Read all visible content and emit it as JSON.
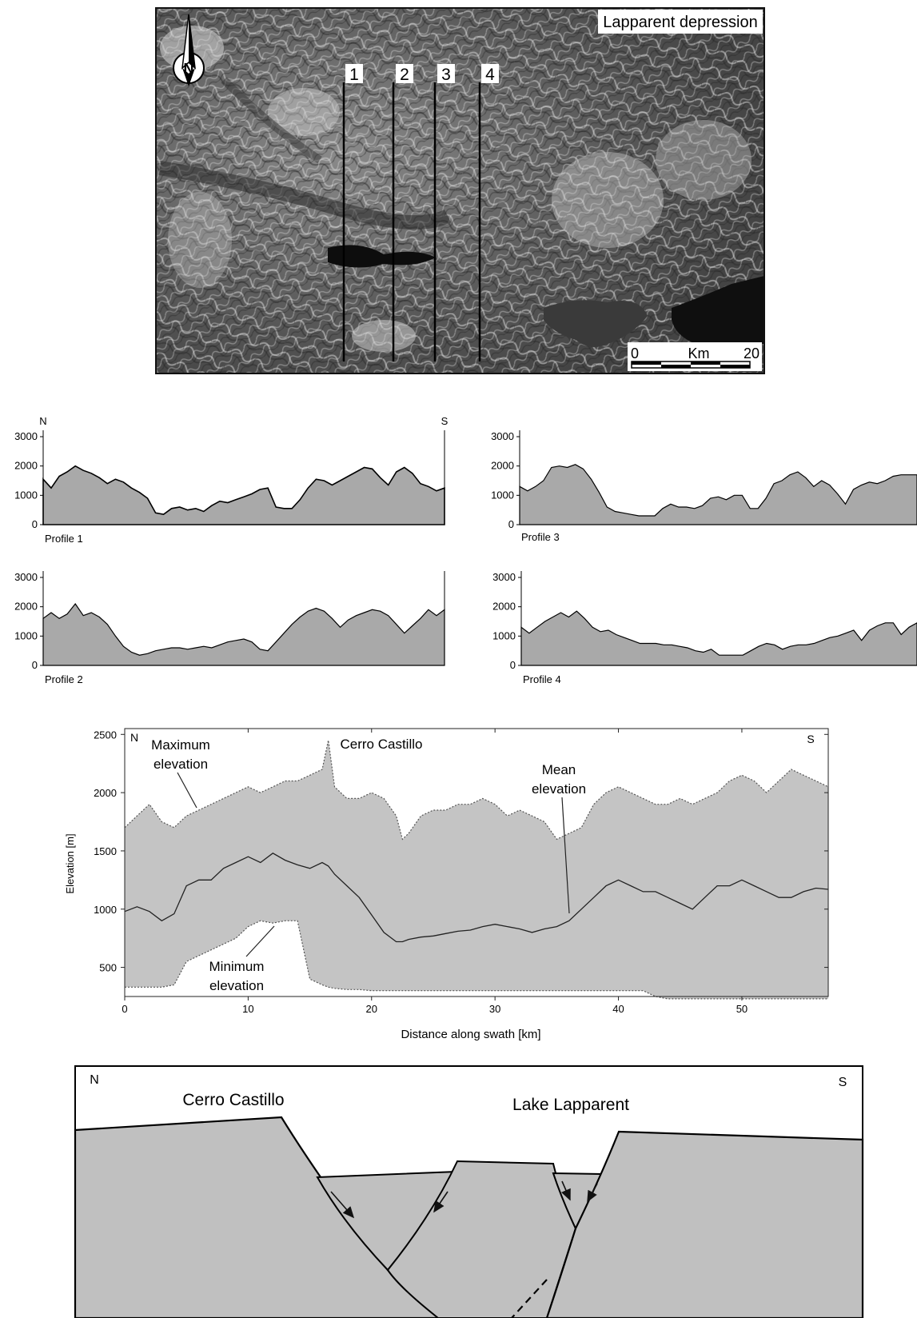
{
  "map": {
    "title": "Lapparent depression",
    "profile_lines": [
      "1",
      "2",
      "3",
      "4"
    ],
    "scale": {
      "start": "0",
      "unit": "Km",
      "end": "20"
    },
    "north_label": "N",
    "icons": [
      "north-arrow-icon",
      "scale-bar"
    ]
  },
  "profiles": {
    "north_label": "N",
    "south_label": "S",
    "y_ticks": [
      "0",
      "1000",
      "2000",
      "3000"
    ],
    "panels": [
      {
        "label": "Profile 1"
      },
      {
        "label": "Profile 2"
      },
      {
        "label": "Profile 3"
      },
      {
        "label": "Profile 4"
      }
    ]
  },
  "swath": {
    "north_label": "N",
    "south_label": "S",
    "ylabel": "Elevation [m]",
    "xlabel": "Distance along swath [km]",
    "y_ticks": [
      "500",
      "1000",
      "1500",
      "2000",
      "2500"
    ],
    "x_ticks": [
      "0",
      "10",
      "20",
      "30",
      "40",
      "50"
    ],
    "annotations": {
      "max_line1": "Maximum",
      "max_line2": "elevation",
      "peak": "Cerro Castillo",
      "mean_line1": "Mean",
      "mean_line2": "elevation",
      "min_line1": "Minimum",
      "min_line2": "elevation"
    }
  },
  "section": {
    "north_label": "N",
    "south_label": "S",
    "left_label": "Cerro Castillo",
    "right_label": "Lake Lapparent"
  },
  "chart_data": [
    {
      "type": "area",
      "panel": "Profile 1",
      "ylim": [
        0,
        3000
      ],
      "y_ticks": [
        0,
        1000,
        2000,
        3000
      ],
      "x": [
        0,
        2,
        4,
        6,
        8,
        10,
        12,
        14,
        16,
        18,
        20,
        22,
        24,
        26,
        28,
        30,
        32,
        34,
        36,
        38,
        40,
        42,
        44,
        46,
        48,
        50,
        52,
        54,
        56,
        58,
        60,
        62,
        64,
        66,
        68,
        70,
        72,
        74,
        76,
        78,
        80,
        82,
        84,
        86,
        88,
        90,
        92,
        94,
        96,
        98,
        100
      ],
      "values": [
        1550,
        1250,
        1650,
        1800,
        2000,
        1850,
        1750,
        1600,
        1400,
        1550,
        1450,
        1250,
        1100,
        900,
        400,
        350,
        550,
        600,
        500,
        550,
        450,
        650,
        800,
        750,
        850,
        950,
        1050,
        1200,
        1250,
        600,
        550,
        550,
        850,
        1250,
        1550,
        1500,
        1350,
        1500,
        1650,
        1800,
        1950,
        1900,
        1600,
        1350,
        1800,
        1950,
        1750,
        1400,
        1300,
        1150,
        1250
      ]
    },
    {
      "type": "area",
      "panel": "Profile 2",
      "ylim": [
        0,
        3000
      ],
      "y_ticks": [
        0,
        1000,
        2000,
        3000
      ],
      "x": [
        0,
        2,
        4,
        6,
        8,
        10,
        12,
        14,
        16,
        18,
        20,
        22,
        24,
        26,
        28,
        30,
        32,
        34,
        36,
        38,
        40,
        42,
        44,
        46,
        48,
        50,
        52,
        54,
        56,
        58,
        60,
        62,
        64,
        66,
        68,
        70,
        72,
        74,
        76,
        78,
        80,
        82,
        84,
        86,
        88,
        90,
        92,
        94,
        96,
        98,
        100
      ],
      "values": [
        1600,
        1800,
        1600,
        1750,
        2100,
        1700,
        1800,
        1650,
        1400,
        1000,
        650,
        450,
        350,
        400,
        500,
        550,
        600,
        600,
        550,
        600,
        650,
        600,
        700,
        800,
        850,
        900,
        800,
        550,
        500,
        800,
        1100,
        1400,
        1650,
        1850,
        1950,
        1850,
        1600,
        1300,
        1550,
        1700,
        1800,
        1900,
        1850,
        1700,
        1400,
        1100,
        1350,
        1600,
        1900,
        1700,
        1900
      ]
    },
    {
      "type": "area",
      "panel": "Profile 3",
      "ylim": [
        0,
        3000
      ],
      "y_ticks": [
        0,
        1000,
        2000,
        3000
      ],
      "x": [
        0,
        2,
        4,
        6,
        8,
        10,
        12,
        14,
        16,
        18,
        20,
        22,
        24,
        26,
        28,
        30,
        32,
        34,
        36,
        38,
        40,
        42,
        44,
        46,
        48,
        50,
        52,
        54,
        56,
        58,
        60,
        62,
        64,
        66,
        68,
        70,
        72,
        74,
        76,
        78,
        80,
        82,
        84,
        86,
        88,
        90,
        92,
        94,
        96,
        98,
        100
      ],
      "values": [
        1300,
        1150,
        1300,
        1500,
        1950,
        2000,
        1950,
        2050,
        1900,
        1550,
        1100,
        600,
        450,
        400,
        350,
        300,
        300,
        300,
        550,
        700,
        600,
        600,
        550,
        650,
        900,
        950,
        850,
        1000,
        1000,
        550,
        550,
        900,
        1400,
        1500,
        1700,
        1800,
        1600,
        1300,
        1500,
        1350,
        1050,
        700,
        1200,
        1350,
        1450,
        1400,
        1500,
        1650,
        1700,
        1700,
        1700
      ]
    },
    {
      "type": "area",
      "panel": "Profile 4",
      "ylim": [
        0,
        3000
      ],
      "y_ticks": [
        0,
        1000,
        2000,
        3000
      ],
      "x": [
        0,
        2,
        4,
        6,
        8,
        10,
        12,
        14,
        16,
        18,
        20,
        22,
        24,
        26,
        28,
        30,
        32,
        34,
        36,
        38,
        40,
        42,
        44,
        46,
        48,
        50,
        52,
        54,
        56,
        58,
        60,
        62,
        64,
        66,
        68,
        70,
        72,
        74,
        76,
        78,
        80,
        82,
        84,
        86,
        88,
        90,
        92,
        94,
        96,
        98,
        100
      ],
      "values": [
        1300,
        1100,
        1300,
        1500,
        1650,
        1800,
        1650,
        1850,
        1600,
        1300,
        1150,
        1200,
        1050,
        950,
        850,
        750,
        750,
        750,
        700,
        700,
        650,
        600,
        500,
        450,
        550,
        350,
        350,
        350,
        350,
        500,
        650,
        750,
        700,
        550,
        650,
        700,
        700,
        750,
        850,
        950,
        1000,
        1100,
        1200,
        850,
        1200,
        1350,
        1450,
        1450,
        1050,
        1300,
        1450
      ]
    },
    {
      "type": "area",
      "title": "",
      "xlabel": "Distance along swath [km]",
      "ylabel": "Elevation [m]",
      "xlim": [
        0,
        57
      ],
      "ylim": [
        250,
        2550
      ],
      "x_ticks": [
        0,
        10,
        20,
        30,
        40,
        50
      ],
      "y_ticks": [
        500,
        1000,
        1500,
        2000,
        2500
      ],
      "x": [
        0,
        1,
        2,
        3,
        4,
        5,
        6,
        7,
        8,
        9,
        10,
        11,
        12,
        13,
        14,
        15,
        16,
        16.5,
        17,
        18,
        19,
        20,
        21,
        22,
        22.5,
        23,
        24,
        25,
        26,
        27,
        28,
        29,
        30,
        31,
        32,
        33,
        34,
        35,
        36,
        37,
        38,
        39,
        40,
        41,
        42,
        43,
        44,
        45,
        46,
        47,
        48,
        49,
        50,
        51,
        52,
        53,
        54,
        55,
        56,
        57
      ],
      "series": [
        {
          "name": "Maximum elevation",
          "values": [
            1700,
            1800,
            1900,
            1750,
            1700,
            1800,
            1850,
            1900,
            1950,
            2000,
            2050,
            2000,
            2050,
            2100,
            2100,
            2150,
            2200,
            2450,
            2050,
            1950,
            1950,
            2000,
            1950,
            1800,
            1600,
            1650,
            1800,
            1850,
            1850,
            1900,
            1900,
            1950,
            1900,
            1800,
            1850,
            1800,
            1750,
            1600,
            1650,
            1700,
            1900,
            2000,
            2050,
            2000,
            1950,
            1900,
            1900,
            1950,
            1900,
            1950,
            2000,
            2100,
            2150,
            2100,
            2000,
            2100,
            2200,
            2150,
            2100,
            2050
          ]
        },
        {
          "name": "Mean elevation",
          "values": [
            980,
            1020,
            980,
            900,
            960,
            1200,
            1250,
            1250,
            1350,
            1400,
            1450,
            1400,
            1480,
            1420,
            1380,
            1350,
            1400,
            1370,
            1300,
            1200,
            1100,
            950,
            800,
            720,
            720,
            740,
            760,
            770,
            790,
            810,
            820,
            850,
            870,
            850,
            830,
            800,
            830,
            850,
            900,
            1000,
            1100,
            1200,
            1250,
            1200,
            1150,
            1150,
            1100,
            1050,
            1000,
            1100,
            1200,
            1200,
            1250,
            1200,
            1150,
            1100,
            1100,
            1150,
            1180,
            1170
          ]
        },
        {
          "name": "Minimum elevation",
          "values": [
            330,
            330,
            330,
            330,
            350,
            550,
            600,
            650,
            700,
            750,
            850,
            900,
            880,
            900,
            900,
            400,
            350,
            330,
            320,
            310,
            310,
            300,
            300,
            300,
            300,
            300,
            300,
            300,
            300,
            300,
            300,
            300,
            300,
            300,
            300,
            300,
            300,
            300,
            300,
            300,
            300,
            300,
            300,
            300,
            300,
            250,
            230,
            230,
            230,
            230,
            230,
            230,
            230,
            230,
            230,
            230,
            230,
            230,
            230,
            230
          ]
        }
      ]
    }
  ]
}
